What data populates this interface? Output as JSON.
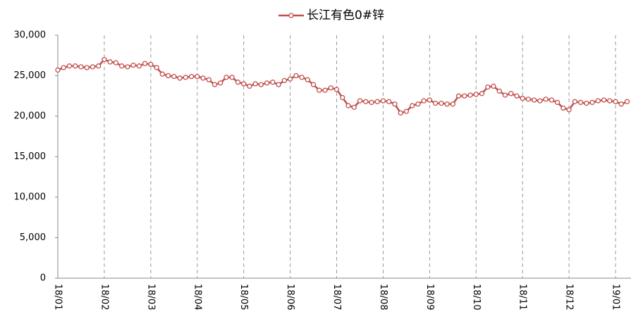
{
  "chart_data": {
    "type": "line",
    "categories": [
      "18/01",
      null,
      null,
      null,
      null,
      null,
      null,
      null,
      "18/02",
      null,
      null,
      null,
      null,
      null,
      null,
      null,
      "18/03",
      null,
      null,
      null,
      null,
      null,
      null,
      null,
      "18/04",
      null,
      null,
      null,
      null,
      null,
      null,
      null,
      "18/05",
      null,
      null,
      null,
      null,
      null,
      null,
      null,
      "18/06",
      null,
      null,
      null,
      null,
      null,
      null,
      null,
      "18/07",
      null,
      null,
      null,
      null,
      null,
      null,
      null,
      "18/08",
      null,
      null,
      null,
      null,
      null,
      null,
      null,
      "18/09",
      null,
      null,
      null,
      null,
      null,
      null,
      null,
      "18/10",
      null,
      null,
      null,
      null,
      null,
      null,
      null,
      "18/11",
      null,
      null,
      null,
      null,
      null,
      null,
      null,
      "18/12",
      null,
      null,
      null,
      null,
      null,
      null,
      null,
      "19/01",
      null,
      null
    ],
    "series": [
      {
        "name": "长江有色0#锌",
        "color": "#c0504d",
        "values": [
          25700,
          26000,
          26200,
          26200,
          26100,
          26000,
          26100,
          26200,
          27000,
          26700,
          26600,
          26200,
          26100,
          26300,
          26200,
          26500,
          26400,
          26000,
          25200,
          25000,
          24900,
          24700,
          24800,
          24900,
          24900,
          24700,
          24500,
          23900,
          24100,
          24800,
          24800,
          24200,
          24000,
          23700,
          24000,
          23900,
          24100,
          24200,
          23900,
          24400,
          24600,
          25000,
          24800,
          24500,
          23900,
          23200,
          23200,
          23500,
          23300,
          22300,
          21300,
          21100,
          21900,
          21800,
          21700,
          21800,
          21900,
          21800,
          21500,
          20400,
          20600,
          21300,
          21500,
          21900,
          22000,
          21600,
          21600,
          21500,
          21500,
          22500,
          22500,
          22600,
          22700,
          22800,
          23600,
          23700,
          23100,
          22600,
          22800,
          22500,
          22200,
          22100,
          22000,
          21900,
          22100,
          22000,
          21700,
          21000,
          20800,
          21800,
          21700,
          21600,
          21700,
          21900,
          22000,
          21900,
          21800,
          21500,
          21800
        ]
      }
    ],
    "ylim": [
      0,
      30000
    ],
    "yticks": [
      0,
      {
        "value": 5000,
        "label": "5,000"
      },
      {
        "value": 10000,
        "label": "10,000"
      },
      {
        "value": 15000,
        "label": "15,000"
      },
      {
        "value": 20000,
        "label": "20,000"
      },
      {
        "value": 25000,
        "label": "25,000"
      },
      {
        "value": 30000,
        "label": "30,000"
      }
    ],
    "legend": "top"
  }
}
